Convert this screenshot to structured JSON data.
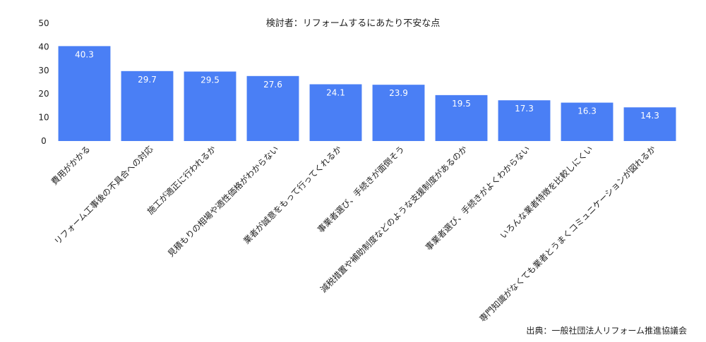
{
  "chart_data": {
    "type": "bar",
    "title": "検討者：リフォームするにあたり不安な点",
    "xlabel": "",
    "ylabel": "",
    "ylim": [
      0,
      50
    ],
    "yticks": [
      0,
      10,
      20,
      30,
      40,
      50
    ],
    "grid": false,
    "categories": [
      "費用がかかる",
      "リフォーム工事後の不具合への対応",
      "施工が適正に行われるか",
      "見積もりの相場や適性価格がわからない",
      "業者が誠意をもって行ってくれるか",
      "事業者選び、手続きが面倒そう",
      "減税措置や補助制度などのような支援制度があるのか",
      "事業者選び、手続きがよくわからない",
      "いろんな業者特徴を比較しにくい",
      "専門知識がなくても業者とうまくコミュニケーションが図れるか"
    ],
    "values": [
      40.3,
      29.7,
      29.5,
      27.6,
      24.1,
      23.9,
      19.5,
      17.3,
      16.3,
      14.3
    ],
    "bar_color": "#4a7ff5",
    "source": "出典：一般社団法人リフォーム推進協議会"
  }
}
